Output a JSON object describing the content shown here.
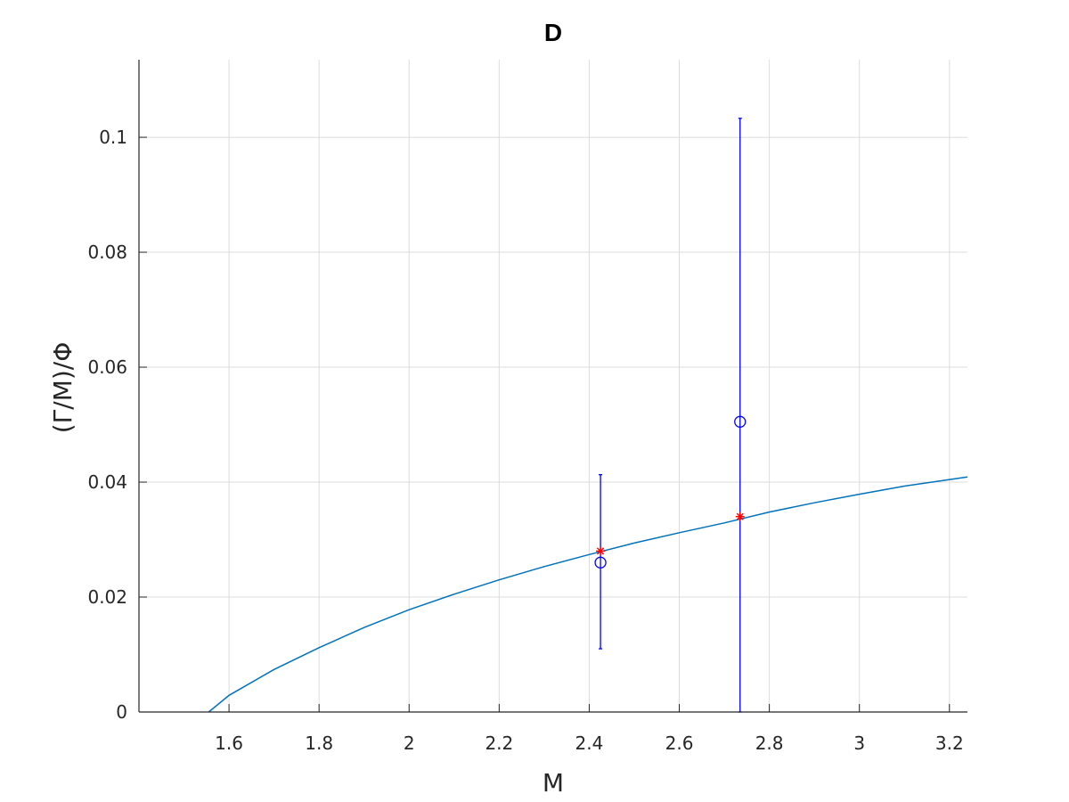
{
  "chart_data": {
    "type": "scatter",
    "title": "D",
    "xlabel": "M",
    "ylabel": "(Γ/M)/Φ",
    "xlim": [
      1.4,
      3.24
    ],
    "ylim": [
      0,
      0.1135
    ],
    "xticks": [
      1.6,
      1.8,
      2,
      2.2,
      2.4,
      2.6,
      2.8,
      3,
      3.2
    ],
    "xtick_labels": [
      "1.6",
      "1.8",
      "2",
      "2.2",
      "2.4",
      "2.6",
      "2.8",
      "3",
      "3.2"
    ],
    "yticks": [
      0,
      0.02,
      0.04,
      0.06,
      0.08,
      0.1
    ],
    "ytick_labels": [
      "0",
      "0.02",
      "0.04",
      "0.06",
      "0.08",
      "0.1"
    ],
    "grid": true,
    "curve": {
      "x": [
        1.555,
        1.6,
        1.7,
        1.8,
        1.9,
        2.0,
        2.1,
        2.2,
        2.3,
        2.4,
        2.5,
        2.6,
        2.7,
        2.8,
        2.9,
        3.0,
        3.1,
        3.24
      ],
      "y": [
        0,
        0.0029,
        0.0074,
        0.0112,
        0.0147,
        0.0178,
        0.0205,
        0.023,
        0.0253,
        0.0274,
        0.0294,
        0.0312,
        0.0329,
        0.0348,
        0.0364,
        0.0379,
        0.0393,
        0.0409
      ],
      "color": "#0072bd"
    },
    "measured": {
      "x": [
        2.425,
        2.735
      ],
      "y": [
        0.026,
        0.0505
      ],
      "err_low": [
        0.011,
        0
      ],
      "err_high": [
        0.0413,
        0.1033
      ],
      "marker": "circle",
      "color": "#0000ff"
    },
    "predicted": {
      "x": [
        2.425,
        2.735
      ],
      "y": [
        0.028,
        0.034
      ],
      "marker": "star",
      "color": "#ff0000"
    }
  }
}
